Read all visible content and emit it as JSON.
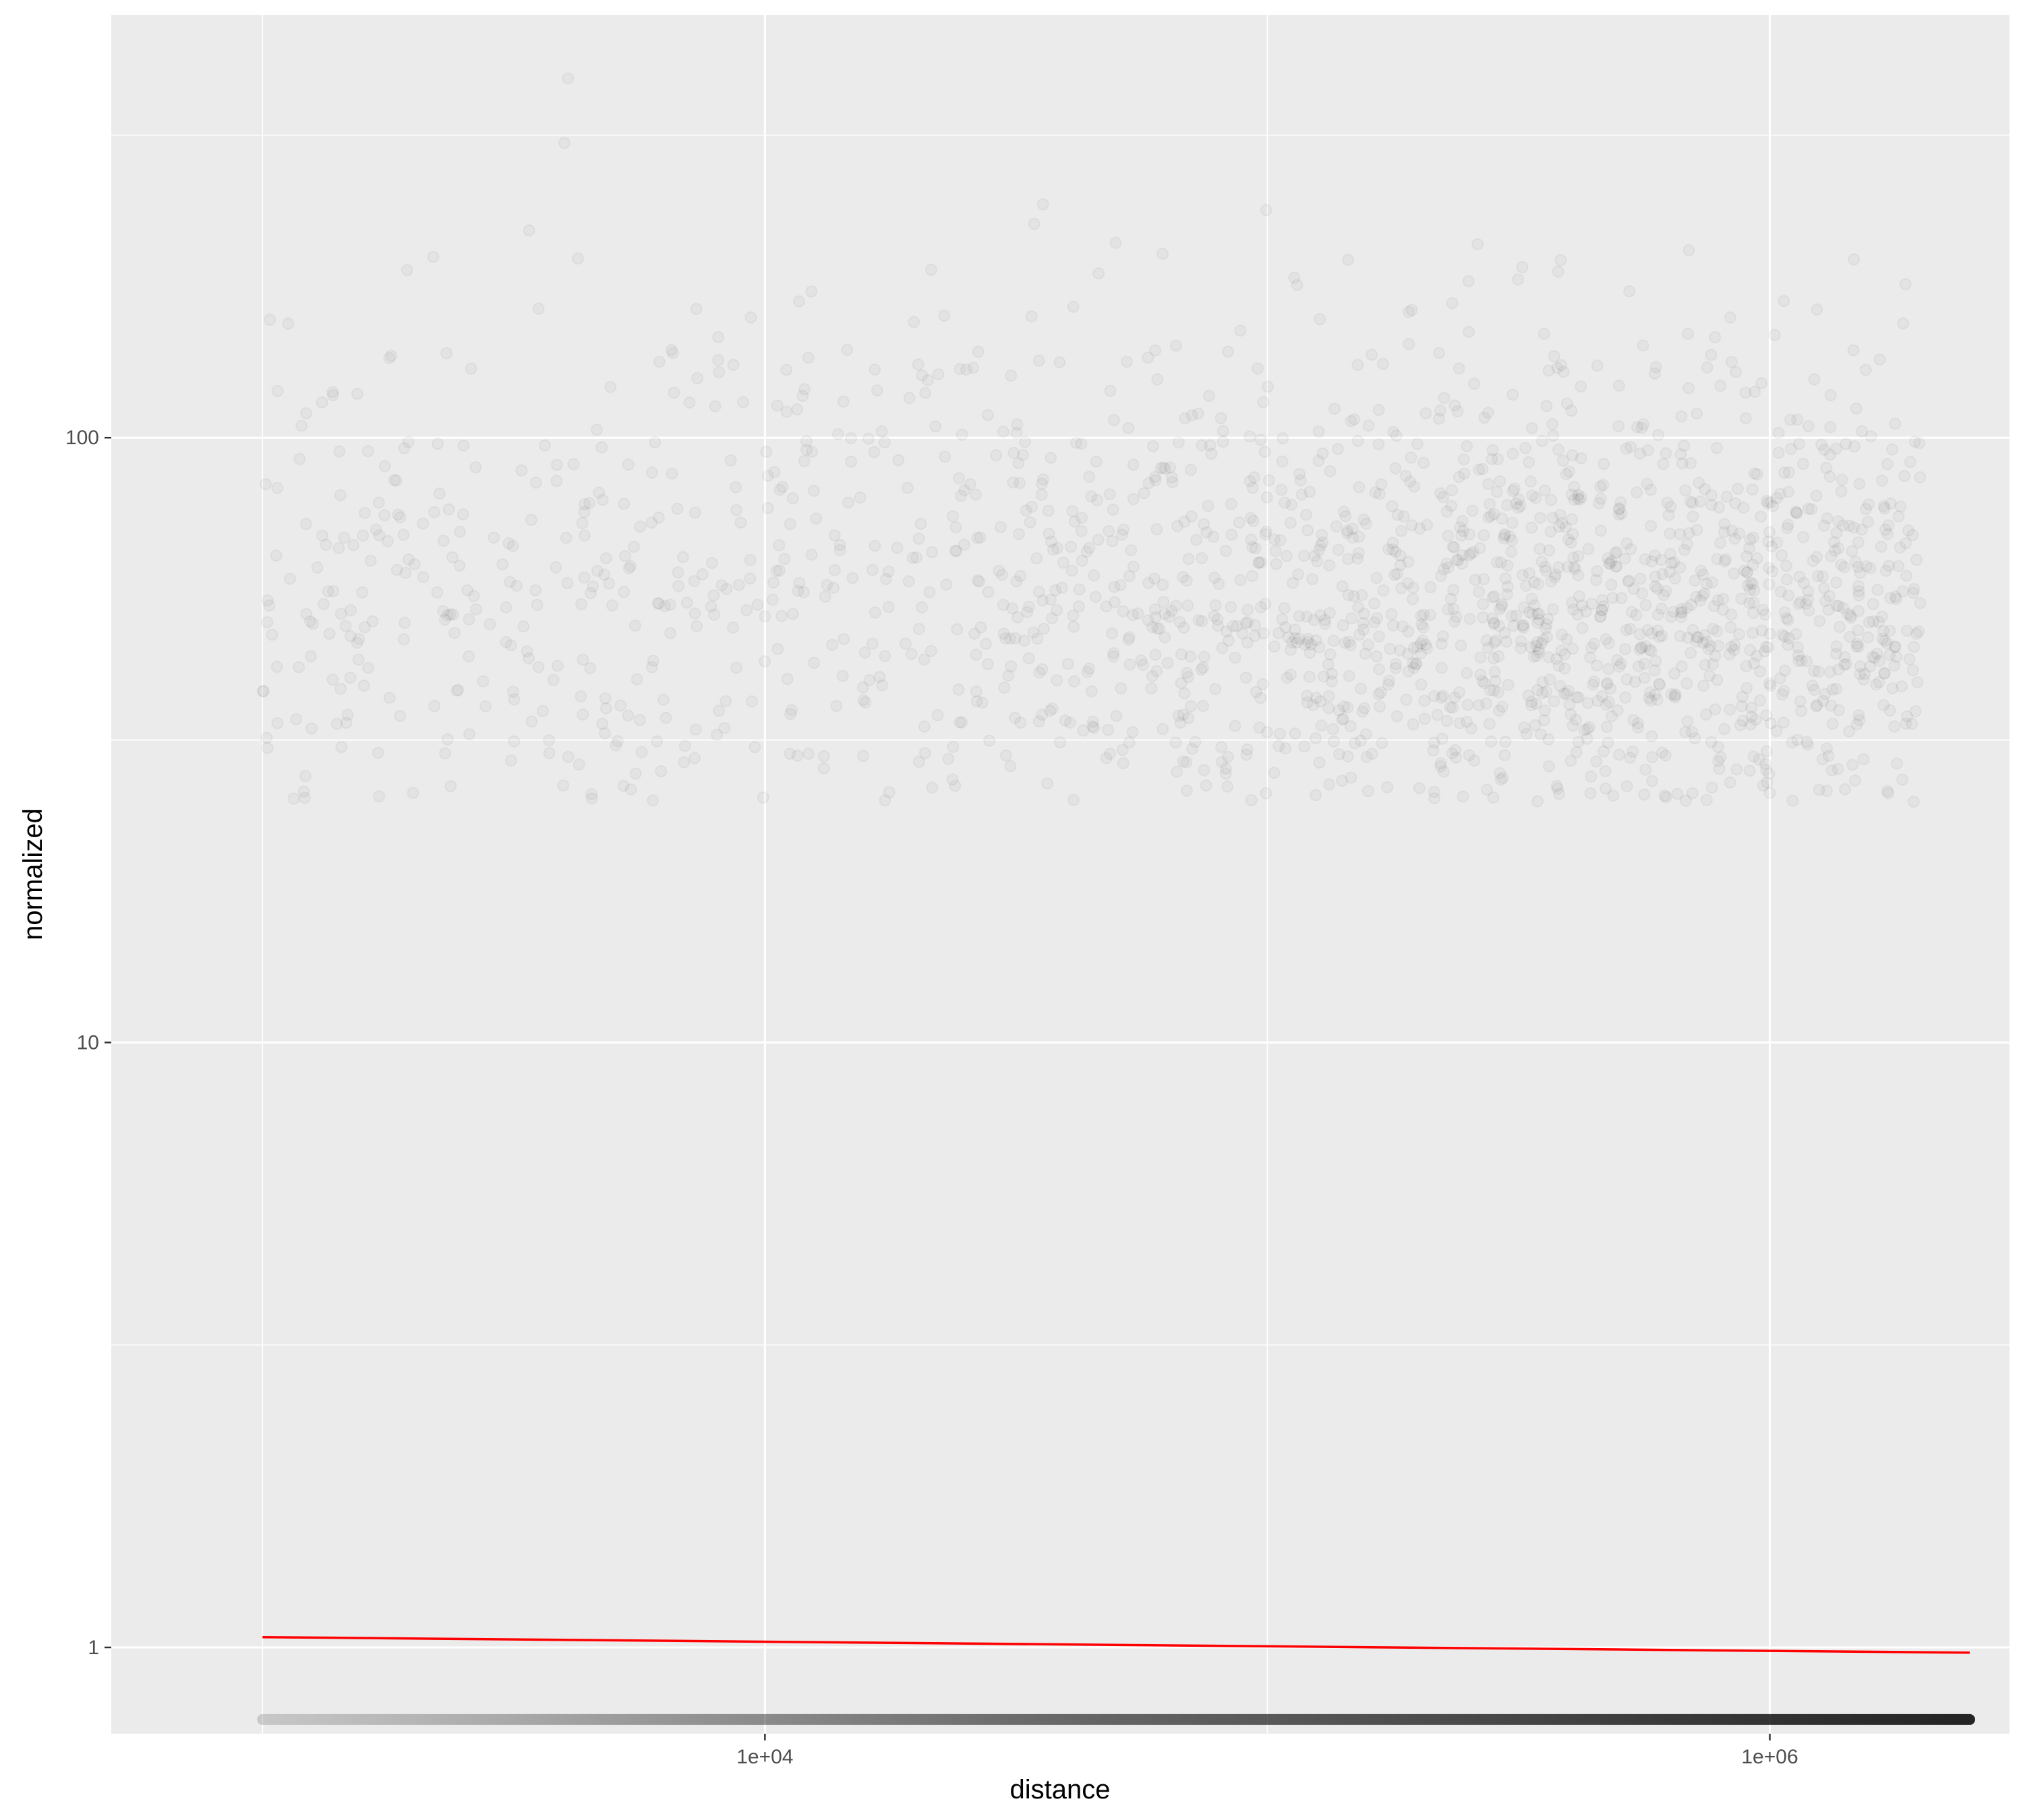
{
  "chart_data": {
    "type": "scatter",
    "title": "",
    "xlabel": "distance",
    "ylabel": "normalized",
    "x_scale": "log10",
    "y_scale": "log10",
    "xlim": [
      500,
      3000000
    ],
    "ylim": [
      0.72,
      500
    ],
    "x_ticks": [
      {
        "value": 10000,
        "label": "1e+04"
      },
      {
        "value": 1000000,
        "label": "1e+06"
      }
    ],
    "x_minor_gridlines": [
      1000,
      100000
    ],
    "y_ticks": [
      {
        "value": 1,
        "label": "1"
      },
      {
        "value": 10,
        "label": "10"
      },
      {
        "value": 100,
        "label": "100"
      }
    ],
    "y_minor_gridlines": [
      3.1623,
      31.623,
      316.23
    ],
    "grid": true,
    "legend": "none",
    "colors": {
      "panel_background": "#ebebeb",
      "gridline": "#ffffff",
      "points": "#000000",
      "fit_line": "#ff0000"
    },
    "point_alpha": 0.03,
    "series": [
      {
        "type": "scatter",
        "description_of_distribution": "sparse cloud of faint points",
        "x_range": [
          1000,
          2000000
        ],
        "y_range": [
          25,
          400
        ],
        "density_peak": {
          "x": 500000,
          "y": 50
        }
      },
      {
        "type": "scatter",
        "description_of_distribution": "dense band of zero-valued points at bottom edge",
        "x_range": [
          1000,
          2500000
        ],
        "y_value": 0.76
      },
      {
        "type": "line",
        "points": [
          {
            "x": 1000,
            "y": 1.04
          },
          {
            "x": 2500000,
            "y": 0.98
          }
        ]
      }
    ]
  }
}
